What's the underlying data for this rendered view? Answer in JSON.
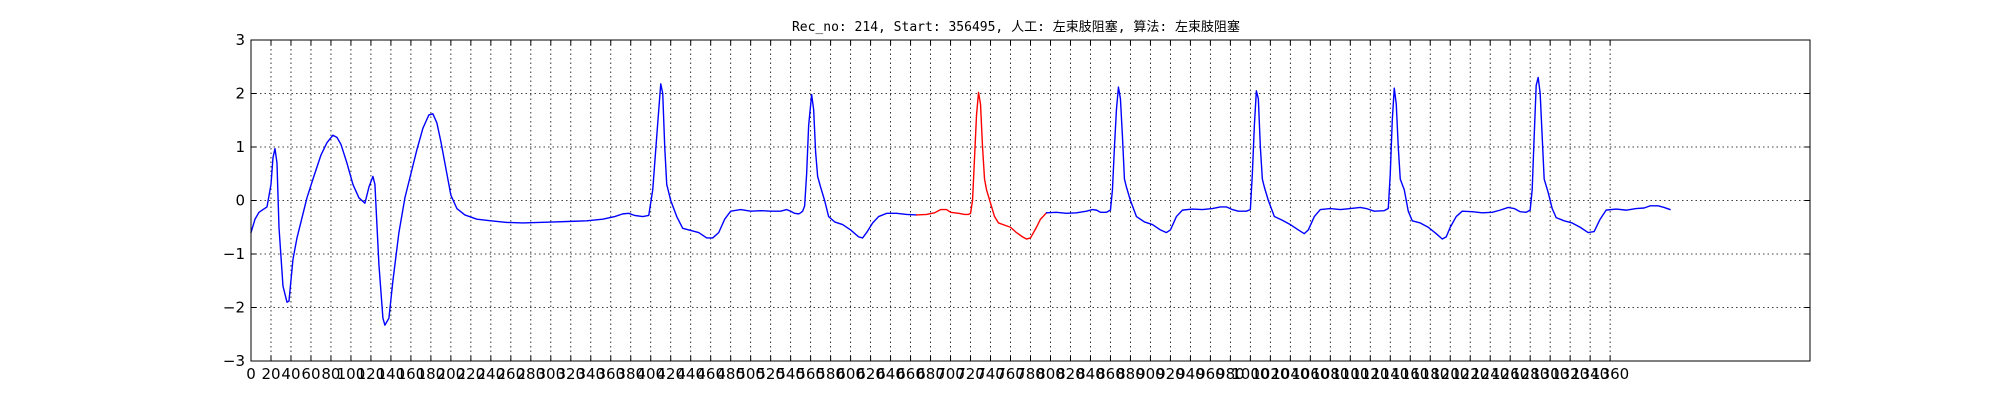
{
  "chart_data": {
    "type": "line",
    "title": "Rec_no: 214, Start: 356495, 人工: 左束肢阻塞, 算法: 左束肢阻塞",
    "xlabel": "",
    "ylabel": "",
    "xlim": [
      0,
      1560
    ],
    "ylim": [
      -3,
      3
    ],
    "grid": true,
    "xtick_step": 20,
    "xtick_last": 1360,
    "yticks": [
      3,
      2,
      1,
      0,
      -1,
      -2,
      -3
    ],
    "colors": {
      "normal": "#0000ff",
      "highlight": "#ff0000"
    },
    "series": [
      {
        "segment": "normal",
        "color": "#0000ff",
        "points": [
          [
            0,
            -0.6
          ],
          [
            4,
            -0.35
          ],
          [
            8,
            -0.22
          ],
          [
            12,
            -0.17
          ],
          [
            16,
            -0.12
          ],
          [
            20,
            0.3
          ],
          [
            22,
            0.8
          ],
          [
            24,
            0.97
          ],
          [
            26,
            0.7
          ],
          [
            28,
            -0.5
          ],
          [
            32,
            -1.6
          ],
          [
            36,
            -1.9
          ],
          [
            38,
            -1.88
          ],
          [
            42,
            -1.1
          ],
          [
            46,
            -0.7
          ],
          [
            50,
            -0.4
          ],
          [
            56,
            0.05
          ],
          [
            62,
            0.4
          ],
          [
            70,
            0.85
          ],
          [
            76,
            1.08
          ],
          [
            82,
            1.22
          ],
          [
            86,
            1.18
          ],
          [
            90,
            1.05
          ],
          [
            96,
            0.7
          ],
          [
            102,
            0.3
          ],
          [
            108,
            0.05
          ],
          [
            114,
            -0.05
          ],
          [
            118,
            0.25
          ],
          [
            122,
            0.45
          ],
          [
            124,
            0.3
          ],
          [
            128,
            -1.2
          ],
          [
            132,
            -2.2
          ],
          [
            134,
            -2.33
          ],
          [
            138,
            -2.2
          ],
          [
            142,
            -1.5
          ],
          [
            148,
            -0.6
          ],
          [
            154,
            0.05
          ],
          [
            160,
            0.5
          ],
          [
            166,
            0.95
          ],
          [
            172,
            1.35
          ],
          [
            178,
            1.6
          ],
          [
            182,
            1.62
          ],
          [
            186,
            1.45
          ],
          [
            190,
            1.1
          ],
          [
            196,
            0.5
          ],
          [
            200,
            0.1
          ],
          [
            206,
            -0.15
          ],
          [
            214,
            -0.27
          ],
          [
            226,
            -0.35
          ],
          [
            240,
            -0.38
          ],
          [
            256,
            -0.41
          ],
          [
            272,
            -0.42
          ],
          [
            288,
            -0.41
          ],
          [
            304,
            -0.4
          ],
          [
            320,
            -0.39
          ],
          [
            336,
            -0.38
          ],
          [
            352,
            -0.35
          ],
          [
            364,
            -0.3
          ],
          [
            372,
            -0.25
          ],
          [
            378,
            -0.24
          ],
          [
            384,
            -0.28
          ],
          [
            392,
            -0.3
          ],
          [
            398,
            -0.28
          ],
          [
            402,
            0.2
          ],
          [
            406,
            1.2
          ],
          [
            410,
            2.18
          ],
          [
            412,
            2.0
          ],
          [
            414,
            1.0
          ],
          [
            416,
            0.3
          ],
          [
            420,
            0.0
          ],
          [
            426,
            -0.3
          ],
          [
            432,
            -0.52
          ],
          [
            440,
            -0.56
          ],
          [
            448,
            -0.6
          ],
          [
            456,
            -0.7
          ],
          [
            462,
            -0.7
          ],
          [
            468,
            -0.6
          ],
          [
            474,
            -0.35
          ],
          [
            480,
            -0.2
          ],
          [
            490,
            -0.17
          ],
          [
            500,
            -0.2
          ],
          [
            510,
            -0.19
          ],
          [
            520,
            -0.2
          ],
          [
            530,
            -0.2
          ],
          [
            536,
            -0.17
          ],
          [
            540,
            -0.2
          ],
          [
            544,
            -0.24
          ],
          [
            548,
            -0.25
          ],
          [
            550,
            -0.23
          ],
          [
            552,
            -0.2
          ],
          [
            554,
            -0.1
          ],
          [
            556,
            0.5
          ],
          [
            558,
            1.4
          ],
          [
            561,
            1.98
          ],
          [
            563,
            1.7
          ],
          [
            565,
            0.9
          ],
          [
            567,
            0.45
          ],
          [
            570,
            0.25
          ],
          [
            574,
            0.0
          ],
          [
            578,
            -0.3
          ],
          [
            584,
            -0.4
          ],
          [
            592,
            -0.45
          ],
          [
            600,
            -0.55
          ],
          [
            608,
            -0.68
          ],
          [
            612,
            -0.7
          ],
          [
            616,
            -0.6
          ],
          [
            622,
            -0.42
          ],
          [
            628,
            -0.3
          ],
          [
            636,
            -0.24
          ],
          [
            646,
            -0.24
          ],
          [
            656,
            -0.26
          ],
          [
            666,
            -0.27
          ]
        ]
      },
      {
        "segment": "highlight",
        "color": "#ff0000",
        "points": [
          [
            666,
            -0.27
          ],
          [
            676,
            -0.26
          ],
          [
            684,
            -0.23
          ],
          [
            690,
            -0.17
          ],
          [
            696,
            -0.17
          ],
          [
            700,
            -0.22
          ],
          [
            708,
            -0.24
          ],
          [
            714,
            -0.26
          ],
          [
            718,
            -0.26
          ],
          [
            720,
            -0.24
          ],
          [
            722,
            0.0
          ],
          [
            724,
            0.8
          ],
          [
            726,
            1.6
          ],
          [
            728,
            2.02
          ],
          [
            730,
            1.8
          ],
          [
            732,
            1.0
          ],
          [
            734,
            0.4
          ],
          [
            736,
            0.2
          ],
          [
            740,
            -0.05
          ],
          [
            744,
            -0.3
          ],
          [
            748,
            -0.42
          ],
          [
            754,
            -0.46
          ],
          [
            760,
            -0.5
          ],
          [
            766,
            -0.6
          ],
          [
            772,
            -0.68
          ],
          [
            776,
            -0.72
          ],
          [
            780,
            -0.7
          ],
          [
            786,
            -0.5
          ],
          [
            790,
            -0.35
          ],
          [
            796,
            -0.23
          ]
        ]
      },
      {
        "segment": "normal",
        "color": "#0000ff",
        "points": [
          [
            796,
            -0.23
          ],
          [
            806,
            -0.22
          ],
          [
            816,
            -0.24
          ],
          [
            826,
            -0.23
          ],
          [
            836,
            -0.2
          ],
          [
            842,
            -0.17
          ],
          [
            846,
            -0.18
          ],
          [
            850,
            -0.22
          ],
          [
            856,
            -0.22
          ],
          [
            860,
            -0.18
          ],
          [
            862,
            0.2
          ],
          [
            864,
            1.0
          ],
          [
            866,
            1.7
          ],
          [
            868,
            2.12
          ],
          [
            870,
            1.9
          ],
          [
            872,
            1.2
          ],
          [
            874,
            0.4
          ],
          [
            876,
            0.25
          ],
          [
            880,
            0.0
          ],
          [
            886,
            -0.3
          ],
          [
            894,
            -0.4
          ],
          [
            902,
            -0.45
          ],
          [
            910,
            -0.55
          ],
          [
            916,
            -0.6
          ],
          [
            920,
            -0.55
          ],
          [
            926,
            -0.3
          ],
          [
            932,
            -0.18
          ],
          [
            942,
            -0.16
          ],
          [
            952,
            -0.17
          ],
          [
            962,
            -0.15
          ],
          [
            970,
            -0.12
          ],
          [
            976,
            -0.12
          ],
          [
            982,
            -0.17
          ],
          [
            988,
            -0.2
          ],
          [
            996,
            -0.2
          ],
          [
            1000,
            -0.17
          ],
          [
            1002,
            0.5
          ],
          [
            1004,
            1.4
          ],
          [
            1006,
            2.05
          ],
          [
            1008,
            1.9
          ],
          [
            1010,
            1.0
          ],
          [
            1012,
            0.4
          ],
          [
            1014,
            0.25
          ],
          [
            1018,
            0.0
          ],
          [
            1024,
            -0.3
          ],
          [
            1032,
            -0.37
          ],
          [
            1040,
            -0.45
          ],
          [
            1048,
            -0.55
          ],
          [
            1054,
            -0.62
          ],
          [
            1058,
            -0.55
          ],
          [
            1064,
            -0.3
          ],
          [
            1070,
            -0.17
          ],
          [
            1080,
            -0.15
          ],
          [
            1090,
            -0.17
          ],
          [
            1100,
            -0.15
          ],
          [
            1110,
            -0.13
          ],
          [
            1116,
            -0.15
          ],
          [
            1124,
            -0.2
          ],
          [
            1134,
            -0.19
          ],
          [
            1138,
            -0.15
          ],
          [
            1140,
            0.5
          ],
          [
            1142,
            1.5
          ],
          [
            1144,
            2.1
          ],
          [
            1146,
            1.8
          ],
          [
            1148,
            1.0
          ],
          [
            1150,
            0.4
          ],
          [
            1154,
            0.2
          ],
          [
            1158,
            -0.2
          ],
          [
            1162,
            -0.38
          ],
          [
            1170,
            -0.42
          ],
          [
            1178,
            -0.5
          ],
          [
            1186,
            -0.62
          ],
          [
            1192,
            -0.72
          ],
          [
            1196,
            -0.68
          ],
          [
            1200,
            -0.5
          ],
          [
            1206,
            -0.3
          ],
          [
            1212,
            -0.2
          ],
          [
            1222,
            -0.21
          ],
          [
            1232,
            -0.23
          ],
          [
            1242,
            -0.22
          ],
          [
            1250,
            -0.18
          ],
          [
            1258,
            -0.13
          ],
          [
            1264,
            -0.15
          ],
          [
            1270,
            -0.21
          ],
          [
            1276,
            -0.22
          ],
          [
            1280,
            -0.18
          ],
          [
            1282,
            0.2
          ],
          [
            1284,
            1.2
          ],
          [
            1286,
            2.15
          ],
          [
            1288,
            2.3
          ],
          [
            1290,
            2.0
          ],
          [
            1292,
            1.2
          ],
          [
            1294,
            0.4
          ],
          [
            1298,
            0.15
          ],
          [
            1302,
            -0.15
          ],
          [
            1306,
            -0.32
          ],
          [
            1314,
            -0.38
          ],
          [
            1322,
            -0.42
          ],
          [
            1330,
            -0.5
          ],
          [
            1338,
            -0.6
          ],
          [
            1344,
            -0.58
          ],
          [
            1350,
            -0.35
          ],
          [
            1356,
            -0.18
          ],
          [
            1366,
            -0.16
          ],
          [
            1376,
            -0.18
          ],
          [
            1386,
            -0.15
          ],
          [
            1394,
            -0.14
          ],
          [
            1400,
            -0.1
          ],
          [
            1408,
            -0.1
          ],
          [
            1414,
            -0.13
          ],
          [
            1420,
            -0.17
          ]
        ]
      }
    ]
  }
}
